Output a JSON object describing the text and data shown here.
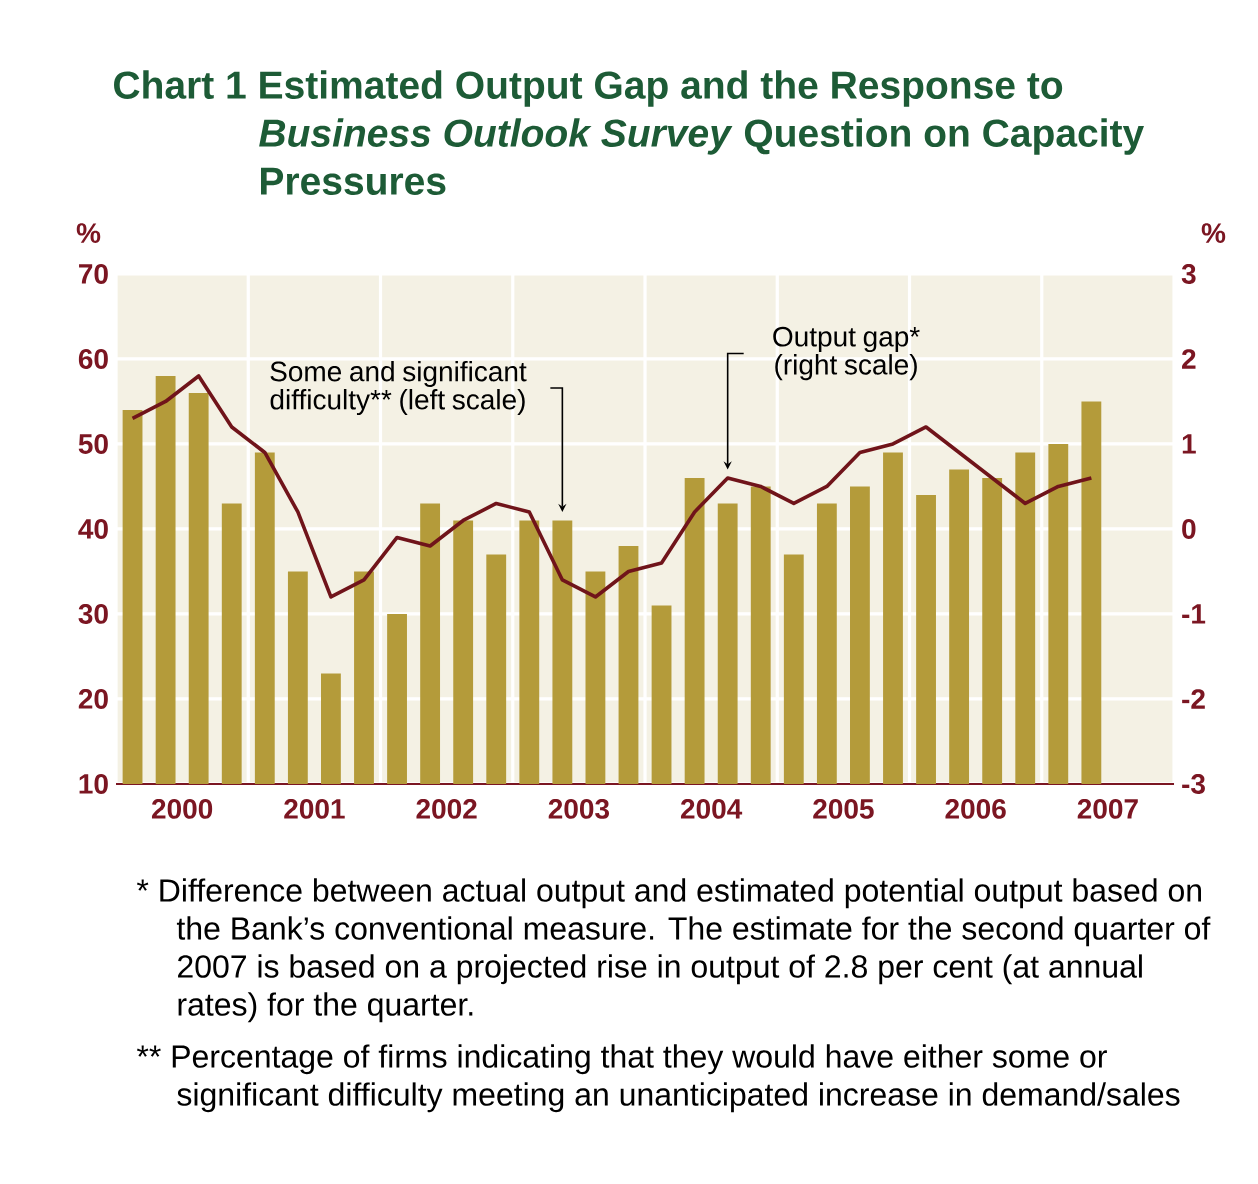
{
  "chart_data": {
    "type": "bar",
    "title": "Chart 1 Estimated Output Gap and the Response to *Business Outlook Survey* Question on Capacity Pressures",
    "ylabel": "%",
    "y2label": "%",
    "x": [
      2000.125,
      2000.375,
      2000.625,
      2000.875,
      2001.125,
      2001.375,
      2001.625,
      2001.875,
      2002.125,
      2002.375,
      2002.625,
      2002.875,
      2003.125,
      2003.375,
      2003.625,
      2003.875,
      2004.125,
      2004.375,
      2004.625,
      2004.875,
      2005.125,
      2005.375,
      2005.625,
      2005.875,
      2006.125,
      2006.375,
      2006.625,
      2006.875,
      2007.125,
      2007.375
    ],
    "xlim": [
      2000,
      2008
    ],
    "xticks": [
      {
        "value": 2000,
        "label": null
      },
      {
        "value": 2001,
        "label": null
      },
      {
        "value": 2002,
        "label": null
      },
      {
        "value": 2003,
        "label": null
      },
      {
        "value": 2004,
        "label": null
      },
      {
        "value": 2005,
        "label": null
      },
      {
        "value": 2006,
        "label": null
      },
      {
        "value": 2007,
        "label": null
      },
      {
        "value": 2008,
        "label": null
      },
      {
        "value": 2000.5,
        "label": "2000"
      },
      {
        "value": 2001.5,
        "label": "2001"
      },
      {
        "value": 2002.5,
        "label": "2002"
      },
      {
        "value": 2003.5,
        "label": "2003"
      },
      {
        "value": 2004.5,
        "label": "2004"
      },
      {
        "value": 2005.5,
        "label": "2005"
      },
      {
        "value": 2006.5,
        "label": "2006"
      },
      {
        "value": 2007.5,
        "label": "2007"
      }
    ],
    "ylim": [
      10,
      70
    ],
    "yticks": [
      10,
      20,
      30,
      40,
      50,
      60,
      70
    ],
    "y2lim": [
      -3,
      3
    ],
    "y2ticks": [
      -3,
      -2,
      -1,
      0,
      1,
      2,
      3
    ],
    "grid": true,
    "series": [
      {
        "color": "#b49b3a",
        "values": [
          54,
          58,
          56,
          43,
          49,
          35,
          23,
          35,
          30,
          43,
          41,
          37,
          41,
          41,
          35,
          38,
          31,
          46,
          43,
          45,
          37,
          43,
          45,
          49,
          44,
          47,
          46,
          49,
          50,
          55
        ]
      },
      {
        "type": "line",
        "axis": "y2",
        "color": "#70141a",
        "values": [
          1.3,
          1.5,
          1.8,
          1.2,
          0.9,
          0.2,
          -0.8,
          -0.6,
          -0.1,
          -0.2,
          0.1,
          0.3,
          0.2,
          -0.6,
          -0.8,
          -0.5,
          -0.4,
          0.2,
          0.6,
          0.5,
          0.3,
          0.5,
          0.9,
          1.0,
          1.2,
          0.9,
          0.6,
          0.3,
          0.5,
          0.6
        ]
      }
    ],
    "annotations": [
      {
        "text": "Some and significant difficulty** (left scale)",
        "x": 2003.375,
        "y": 42
      },
      {
        "text": "Output gap* (right scale)",
        "x": 2004.625,
        "y": 47
      },
      "* Difference between actual output and estimated potential output based on the Bank’s conventional measure. The estimate for the second quarter of 2007 is based on a projected rise in output of 2.8 per cent (at annual rates) for the quarter.",
      "** Percentage of firms indicating that they would have either some or significant difficulty meeting an unanticipated increase in demand/sales"
    ]
  }
}
